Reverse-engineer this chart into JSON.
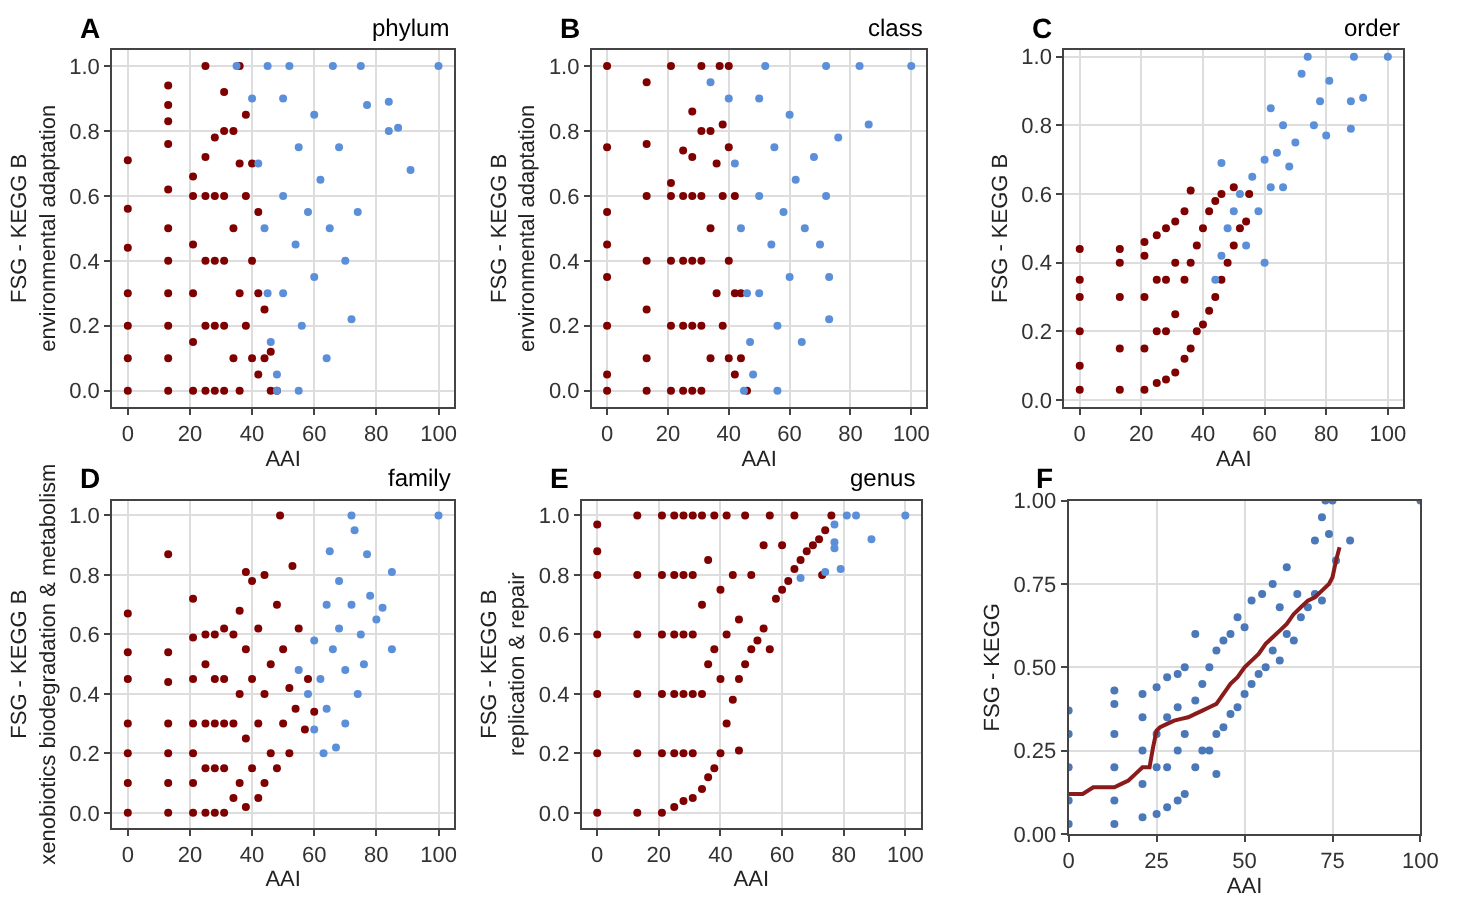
{
  "chart_data": [
    {
      "type": "scatter",
      "title": "A",
      "subtitle": "phylum",
      "xlabel": "AAI",
      "ylabel": "FSG - KEGG B\nenvironmental adaptation",
      "xlim": [
        -5,
        105
      ],
      "ylim": [
        -0.05,
        1.05
      ],
      "xticks": [
        0,
        20,
        40,
        60,
        80,
        100
      ],
      "yticks": [
        {
          "value": 0,
          "label": "0.0"
        },
        {
          "value": 0.2,
          "label": "0.2"
        },
        {
          "value": 0.4,
          "label": "0.4"
        },
        {
          "value": 0.6,
          "label": "0.6"
        },
        {
          "value": 0.8,
          "label": "0.8"
        },
        {
          "value": 1,
          "label": "1.0"
        }
      ],
      "grid": true,
      "marker": "circle",
      "series": [
        {
          "color": "#7f0000",
          "x": [
            0,
            0,
            0,
            0,
            0,
            0,
            0,
            13,
            13,
            13,
            13,
            13,
            13,
            13,
            13,
            13,
            13,
            13,
            21,
            21,
            21,
            21,
            21,
            21,
            25,
            25,
            25,
            25,
            25,
            25,
            28,
            28,
            28,
            28,
            28,
            31,
            31,
            31,
            31,
            31,
            31,
            34,
            34,
            34,
            36,
            36,
            36,
            38,
            38,
            38,
            40,
            40,
            40,
            42,
            42,
            42,
            44,
            44,
            46,
            46,
            48,
            36
          ],
          "values": [
            0,
            0.1,
            0.2,
            0.3,
            0.44,
            0.56,
            0.71,
            0,
            0.1,
            0.2,
            0.3,
            0.4,
            0.5,
            0.62,
            0.76,
            0.83,
            0.88,
            0.94,
            0,
            0.15,
            0.3,
            0.45,
            0.6,
            0.66,
            0,
            0.2,
            0.4,
            0.6,
            0.72,
            1.0,
            0,
            0.2,
            0.4,
            0.6,
            0.78,
            0,
            0.2,
            0.4,
            0.6,
            0.8,
            0.92,
            0.1,
            0.5,
            0.8,
            0.3,
            0.7,
            1.0,
            0.2,
            0.6,
            0.85,
            0.1,
            0.4,
            0.7,
            0.05,
            0.3,
            0.55,
            0.1,
            0.25,
            0,
            0.12,
            0,
            0
          ]
        },
        {
          "color": "#5b8fd9",
          "x": [
            40,
            42,
            44,
            45,
            46,
            48,
            50,
            50,
            50,
            52,
            54,
            55,
            56,
            58,
            60,
            60,
            62,
            64,
            65,
            68,
            70,
            72,
            74,
            77,
            84,
            84,
            87,
            91,
            100,
            35,
            45,
            66,
            75,
            55,
            48
          ],
          "values": [
            0.9,
            0.7,
            0.5,
            0.3,
            0.15,
            0.05,
            0.3,
            0.6,
            0.9,
            1.0,
            0.45,
            0.75,
            0.2,
            0.55,
            0.85,
            0.35,
            0.65,
            0.1,
            0.5,
            0.75,
            0.4,
            0.22,
            0.55,
            0.88,
            0.89,
            0.8,
            0.81,
            0.68,
            1.0,
            1.0,
            1.0,
            1.0,
            1.0,
            0,
            0
          ]
        }
      ]
    },
    {
      "type": "scatter",
      "title": "B",
      "subtitle": "class",
      "xlabel": "AAI",
      "ylabel": "FSG - KEGG B\nenvironmental adaptation",
      "xlim": [
        -5,
        105
      ],
      "ylim": [
        -0.05,
        1.05
      ],
      "xticks": [
        0,
        20,
        40,
        60,
        80,
        100
      ],
      "yticks": [
        {
          "value": 0,
          "label": "0.0"
        },
        {
          "value": 0.2,
          "label": "0.2"
        },
        {
          "value": 0.4,
          "label": "0.4"
        },
        {
          "value": 0.6,
          "label": "0.6"
        },
        {
          "value": 0.8,
          "label": "0.8"
        },
        {
          "value": 1,
          "label": "1.0"
        }
      ],
      "grid": true,
      "marker": "circle",
      "series": [
        {
          "color": "#7f0000",
          "x": [
            0,
            0,
            0,
            0,
            0,
            0,
            0,
            0,
            13,
            13,
            13,
            13,
            13,
            13,
            13,
            21,
            21,
            21,
            21,
            21,
            21,
            25,
            25,
            25,
            25,
            25,
            28,
            28,
            28,
            28,
            28,
            28,
            31,
            31,
            31,
            31,
            31,
            31,
            34,
            34,
            34,
            36,
            36,
            37,
            38,
            38,
            38,
            40,
            40,
            40,
            42,
            42,
            42,
            44,
            44,
            46,
            40
          ],
          "values": [
            0,
            0.05,
            0.2,
            0.35,
            0.45,
            0.55,
            0.75,
            1.0,
            0,
            0.1,
            0.25,
            0.4,
            0.6,
            0.76,
            0.95,
            0,
            0.2,
            0.4,
            0.6,
            0.64,
            1.0,
            0,
            0.2,
            0.4,
            0.6,
            0.74,
            0,
            0.2,
            0.4,
            0.6,
            0.72,
            0.86,
            0,
            0.2,
            0.4,
            0.6,
            0.8,
            1.0,
            0.1,
            0.5,
            0.8,
            0.3,
            0.7,
            1.0,
            0.2,
            0.6,
            0.82,
            0.1,
            0.4,
            0.75,
            0.05,
            0.3,
            0.6,
            0.1,
            0.3,
            0,
            1.0
          ]
        },
        {
          "color": "#5b8fd9",
          "x": [
            34,
            40,
            42,
            44,
            46,
            47,
            48,
            50,
            50,
            50,
            52,
            54,
            55,
            56,
            58,
            60,
            60,
            62,
            64,
            65,
            68,
            70,
            73,
            72,
            76,
            83,
            86,
            100,
            72,
            56,
            45,
            73
          ],
          "values": [
            0.95,
            0.9,
            0.7,
            0.5,
            0.3,
            0.15,
            0.05,
            0.3,
            0.6,
            0.9,
            1.0,
            0.45,
            0.75,
            0.2,
            0.55,
            0.85,
            0.35,
            0.65,
            0.15,
            0.5,
            0.72,
            0.45,
            0.22,
            0.6,
            0.78,
            1.0,
            0.82,
            1.0,
            1.0,
            0,
            0,
            0.35
          ]
        }
      ]
    },
    {
      "type": "scatter",
      "title": "C",
      "subtitle": "order",
      "xlabel": "AAI",
      "ylabel": "FSG - KEGG B",
      "xlim": [
        -5,
        105
      ],
      "ylim": [
        -0.02,
        1.02
      ],
      "xticks": [
        0,
        20,
        40,
        60,
        80,
        100
      ],
      "yticks": [
        {
          "value": 0,
          "label": "0.0"
        },
        {
          "value": 0.2,
          "label": "0.2"
        },
        {
          "value": 0.4,
          "label": "0.4"
        },
        {
          "value": 0.6,
          "label": "0.6"
        },
        {
          "value": 0.8,
          "label": "0.8"
        },
        {
          "value": 1,
          "label": "1.0"
        }
      ],
      "grid": true,
      "marker": "circle",
      "series": [
        {
          "color": "#7f0000",
          "x": [
            0,
            0,
            0,
            0,
            0,
            0,
            13,
            13,
            13,
            13,
            13,
            21,
            21,
            21,
            21,
            21,
            25,
            25,
            25,
            25,
            28,
            28,
            28,
            28,
            31,
            31,
            31,
            31,
            34,
            34,
            34,
            36,
            36,
            36,
            38,
            38,
            40,
            40,
            42,
            42,
            44,
            44,
            46,
            46,
            48,
            50,
            50,
            52,
            54,
            55
          ],
          "values": [
            0.03,
            0.1,
            0.2,
            0.3,
            0.35,
            0.44,
            0.03,
            0.15,
            0.3,
            0.4,
            0.44,
            0.03,
            0.15,
            0.3,
            0.42,
            0.46,
            0.05,
            0.2,
            0.35,
            0.48,
            0.06,
            0.2,
            0.35,
            0.5,
            0.08,
            0.25,
            0.4,
            0.52,
            0.12,
            0.35,
            0.55,
            0.15,
            0.4,
            0.61,
            0.2,
            0.45,
            0.22,
            0.5,
            0.26,
            0.55,
            0.3,
            0.58,
            0.35,
            0.6,
            0.4,
            0.45,
            0.62,
            0.5,
            0.52,
            0.6
          ]
        },
        {
          "color": "#5b8fd9",
          "x": [
            44,
            46,
            48,
            50,
            52,
            54,
            56,
            58,
            60,
            60,
            62,
            62,
            64,
            66,
            66,
            68,
            70,
            72,
            74,
            76,
            78,
            80,
            81,
            88,
            88,
            89,
            92,
            100,
            46
          ],
          "values": [
            0.35,
            0.42,
            0.5,
            0.55,
            0.6,
            0.45,
            0.65,
            0.55,
            0.4,
            0.7,
            0.62,
            0.85,
            0.72,
            0.62,
            0.8,
            0.68,
            0.75,
            0.95,
            1.0,
            0.8,
            0.87,
            0.77,
            0.93,
            0.87,
            0.79,
            1.0,
            0.88,
            1.0,
            0.69
          ]
        }
      ]
    },
    {
      "type": "scatter",
      "title": "D",
      "subtitle": "family",
      "xlabel": "AAI",
      "ylabel": "FSG - KEGG B\nxenobiotics biodegradation & metabolism",
      "xlim": [
        -5,
        105
      ],
      "ylim": [
        -0.05,
        1.05
      ],
      "xticks": [
        0,
        20,
        40,
        60,
        80,
        100
      ],
      "yticks": [
        {
          "value": 0,
          "label": "0.0"
        },
        {
          "value": 0.2,
          "label": "0.2"
        },
        {
          "value": 0.4,
          "label": "0.4"
        },
        {
          "value": 0.6,
          "label": "0.6"
        },
        {
          "value": 0.8,
          "label": "0.8"
        },
        {
          "value": 1,
          "label": "1.0"
        }
      ],
      "grid": true,
      "marker": "circle",
      "series": [
        {
          "color": "#7f0000",
          "x": [
            0,
            0,
            0,
            0,
            0,
            0,
            0,
            13,
            13,
            13,
            13,
            13,
            13,
            13,
            21,
            21,
            21,
            21,
            21,
            21,
            21,
            25,
            25,
            25,
            25,
            25,
            28,
            28,
            28,
            28,
            28,
            31,
            31,
            31,
            31,
            31,
            34,
            34,
            34,
            36,
            36,
            36,
            38,
            38,
            38,
            40,
            40,
            40,
            42,
            42,
            42,
            44,
            44,
            44,
            46,
            46,
            48,
            48,
            49,
            50,
            50,
            52,
            52,
            54,
            55,
            57,
            58,
            60,
            38,
            53
          ],
          "values": [
            0,
            0.1,
            0.2,
            0.3,
            0.45,
            0.54,
            0.67,
            0,
            0.1,
            0.2,
            0.3,
            0.44,
            0.54,
            0.87,
            0,
            0.1,
            0.2,
            0.3,
            0.45,
            0.59,
            0.72,
            0,
            0.15,
            0.3,
            0.5,
            0.6,
            0,
            0.15,
            0.3,
            0.45,
            0.6,
            0,
            0.15,
            0.3,
            0.45,
            0.62,
            0.05,
            0.3,
            0.6,
            0.1,
            0.4,
            0.68,
            0.02,
            0.25,
            0.55,
            0.15,
            0.45,
            0.78,
            0.05,
            0.3,
            0.62,
            0.1,
            0.4,
            0.8,
            0.2,
            0.5,
            0.15,
            0.7,
            1.0,
            0.3,
            0.55,
            0.2,
            0.42,
            0.35,
            0.62,
            0.28,
            0.45,
            0.34,
            0.81,
            0.83
          ]
        },
        {
          "color": "#5b8fd9",
          "x": [
            55,
            58,
            60,
            60,
            62,
            63,
            64,
            64,
            65,
            66,
            67,
            68,
            68,
            70,
            70,
            72,
            72,
            73,
            74,
            75,
            76,
            77,
            78,
            80,
            82,
            85,
            85,
            100
          ],
          "values": [
            0.48,
            0.4,
            0.58,
            0.28,
            0.45,
            0.2,
            0.7,
            0.35,
            0.88,
            0.55,
            0.22,
            0.62,
            0.78,
            0.3,
            0.48,
            1.0,
            0.7,
            0.95,
            0.4,
            0.6,
            0.5,
            0.87,
            0.73,
            0.65,
            0.69,
            0.81,
            0.55,
            1.0
          ]
        }
      ]
    },
    {
      "type": "scatter",
      "title": "E",
      "subtitle": "genus",
      "xlabel": "AAI",
      "ylabel": "FSG - KEGG B\nreplication & repair",
      "xlim": [
        -5,
        105
      ],
      "ylim": [
        -0.05,
        1.05
      ],
      "xticks": [
        0,
        20,
        40,
        60,
        80,
        100
      ],
      "yticks": [
        {
          "value": 0,
          "label": "0.0"
        },
        {
          "value": 0.2,
          "label": "0.2"
        },
        {
          "value": 0.4,
          "label": "0.4"
        },
        {
          "value": 0.6,
          "label": "0.6"
        },
        {
          "value": 0.8,
          "label": "0.8"
        },
        {
          "value": 1,
          "label": "1.0"
        }
      ],
      "grid": true,
      "marker": "circle",
      "series": [
        {
          "color": "#7f0000",
          "x": [
            0,
            0,
            0,
            0,
            0,
            0,
            0,
            13,
            13,
            13,
            13,
            13,
            13,
            21,
            21,
            21,
            21,
            21,
            21,
            25,
            25,
            25,
            25,
            25,
            25,
            28,
            28,
            28,
            28,
            28,
            28,
            31,
            31,
            31,
            31,
            31,
            31,
            34,
            34,
            34,
            34,
            36,
            36,
            36,
            38,
            38,
            38,
            40,
            40,
            40,
            42,
            42,
            42,
            44,
            44,
            46,
            46,
            46,
            48,
            48,
            50,
            50,
            52,
            54,
            54,
            56,
            56,
            58,
            60,
            60,
            62,
            64,
            66,
            68,
            70,
            72,
            73,
            74,
            76,
            64
          ],
          "values": [
            0,
            0.2,
            0.4,
            0.6,
            0.8,
            0.88,
            0.97,
            0,
            0.2,
            0.4,
            0.6,
            0.8,
            1.0,
            0,
            0.2,
            0.4,
            0.6,
            0.8,
            1.0,
            0.02,
            0.2,
            0.4,
            0.6,
            0.8,
            1.0,
            0.04,
            0.2,
            0.4,
            0.6,
            0.8,
            1.0,
            0.05,
            0.2,
            0.4,
            0.6,
            0.8,
            1.0,
            0.08,
            0.4,
            0.7,
            1.0,
            0.12,
            0.5,
            0.85,
            0.15,
            0.55,
            1.0,
            0.2,
            0.45,
            0.75,
            0.3,
            0.6,
            1.0,
            0.38,
            0.8,
            0.21,
            0.45,
            0.65,
            0.5,
            1.0,
            0.55,
            0.8,
            0.58,
            0.62,
            0.9,
            0.55,
            1.0,
            0.72,
            0.75,
            0.9,
            0.78,
            0.82,
            0.85,
            0.88,
            0.9,
            0.92,
            0.8,
            0.95,
            1.0,
            1.0
          ]
        },
        {
          "color": "#5b8fd9",
          "x": [
            66,
            74,
            77,
            77,
            77,
            79,
            81,
            84,
            89,
            100
          ],
          "values": [
            0.79,
            0.81,
            0.97,
            0.89,
            0.91,
            0.82,
            1.0,
            1.0,
            0.92,
            1.0
          ]
        }
      ]
    },
    {
      "type": "scatter",
      "title": "F",
      "xlabel": "AAI",
      "ylabel": "FSG - KEGG",
      "xlim": [
        0,
        100
      ],
      "ylim": [
        0,
        1
      ],
      "xticks": [
        0,
        25,
        50,
        75,
        100
      ],
      "yticks": [
        {
          "value": 0,
          "label": "0.00"
        },
        {
          "value": 0.25,
          "label": "0.25"
        },
        {
          "value": 0.5,
          "label": "0.50"
        },
        {
          "value": 0.75,
          "label": "0.75"
        },
        {
          "value": 1,
          "label": "1.00"
        }
      ],
      "grid": true,
      "marker": "circle",
      "series": [
        {
          "color": "#4a78b8",
          "x": [
            0,
            0,
            0,
            0,
            0,
            13,
            13,
            13,
            13,
            13,
            13,
            21,
            21,
            21,
            21,
            21,
            25,
            25,
            25,
            25,
            28,
            28,
            28,
            28,
            31,
            31,
            31,
            31,
            33,
            33,
            33,
            36,
            36,
            36,
            38,
            38,
            40,
            40,
            42,
            42,
            44,
            44,
            46,
            46,
            48,
            48,
            50,
            50,
            52,
            52,
            54,
            55,
            56,
            58,
            58,
            60,
            60,
            62,
            62,
            64,
            65,
            66,
            68,
            70,
            70,
            72,
            72,
            73,
            75,
            76,
            74,
            80,
            100,
            42
          ],
          "values": [
            0.03,
            0.1,
            0.2,
            0.3,
            0.37,
            0.03,
            0.1,
            0.2,
            0.3,
            0.39,
            0.43,
            0.05,
            0.15,
            0.25,
            0.35,
            0.42,
            0.06,
            0.2,
            0.3,
            0.44,
            0.08,
            0.2,
            0.35,
            0.47,
            0.1,
            0.25,
            0.38,
            0.48,
            0.12,
            0.3,
            0.5,
            0.2,
            0.4,
            0.6,
            0.25,
            0.45,
            0.25,
            0.5,
            0.3,
            0.55,
            0.32,
            0.58,
            0.36,
            0.6,
            0.38,
            0.65,
            0.42,
            0.62,
            0.45,
            0.7,
            0.48,
            0.72,
            0.5,
            0.55,
            0.75,
            0.52,
            0.68,
            0.6,
            0.8,
            0.58,
            0.72,
            0.65,
            0.68,
            0.72,
            0.88,
            0.7,
            0.95,
            1.0,
            1.0,
            0.82,
            0.9,
            0.88,
            1.0,
            0.18
          ]
        },
        {
          "type": "line",
          "color": "#8b1a1a",
          "marker": "none",
          "x": [
            0,
            4,
            7,
            10,
            13,
            15,
            17,
            19,
            21,
            23,
            24,
            25,
            26,
            28,
            30,
            32,
            34,
            36,
            38,
            40,
            42,
            44,
            46,
            48,
            50,
            52,
            54,
            56,
            58,
            60,
            62,
            64,
            66,
            68,
            70,
            72,
            74,
            75,
            76,
            77
          ],
          "values": [
            0.12,
            0.12,
            0.14,
            0.14,
            0.14,
            0.15,
            0.16,
            0.18,
            0.2,
            0.2,
            0.26,
            0.31,
            0.32,
            0.33,
            0.34,
            0.345,
            0.35,
            0.36,
            0.37,
            0.38,
            0.39,
            0.42,
            0.45,
            0.47,
            0.5,
            0.52,
            0.54,
            0.57,
            0.59,
            0.61,
            0.63,
            0.66,
            0.68,
            0.7,
            0.71,
            0.73,
            0.75,
            0.77,
            0.82,
            0.86
          ]
        }
      ]
    }
  ]
}
